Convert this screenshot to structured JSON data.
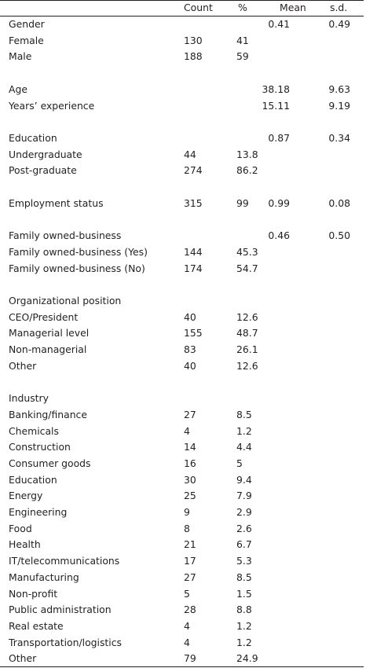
{
  "header": {
    "count": "Count",
    "pct": "%",
    "mean": "Mean",
    "sd": "s.d."
  },
  "rows": [
    {
      "label": "Gender",
      "count": "",
      "pct": "",
      "mean": "0.41",
      "sd": "0.49"
    },
    {
      "label": "Female",
      "count": "130",
      "pct": "41",
      "mean": "",
      "sd": ""
    },
    {
      "label": "Male",
      "count": "188",
      "pct": "59",
      "mean": "",
      "sd": ""
    },
    {
      "label": "",
      "count": "",
      "pct": "",
      "mean": "",
      "sd": ""
    },
    {
      "label": "Age",
      "count": "",
      "pct": "",
      "mean": "38.18",
      "sd": "9.63"
    },
    {
      "label": "Years’ experience",
      "count": "",
      "pct": "",
      "mean": "15.11",
      "sd": "9.19"
    },
    {
      "label": "",
      "count": "",
      "pct": "",
      "mean": "",
      "sd": ""
    },
    {
      "label": "Education",
      "count": "",
      "pct": "",
      "mean": "0.87",
      "sd": "0.34"
    },
    {
      "label": "Undergraduate",
      "count": "44",
      "pct": "13.8",
      "mean": "",
      "sd": ""
    },
    {
      "label": "Post-graduate",
      "count": "274",
      "pct": "86.2",
      "mean": "",
      "sd": ""
    },
    {
      "label": "",
      "count": "",
      "pct": "",
      "mean": "",
      "sd": ""
    },
    {
      "label": "Employment status",
      "count": "315",
      "pct": "99",
      "mean": "0.99",
      "sd": "0.08"
    },
    {
      "label": "",
      "count": "",
      "pct": "",
      "mean": "",
      "sd": ""
    },
    {
      "label": "Family owned-business",
      "count": "",
      "pct": "",
      "mean": "0.46",
      "sd": "0.50"
    },
    {
      "label": "Family owned-business (Yes)",
      "count": "144",
      "pct": "45.3",
      "mean": "",
      "sd": ""
    },
    {
      "label": "Family owned-business (No)",
      "count": "174",
      "pct": "54.7",
      "mean": "",
      "sd": ""
    },
    {
      "label": "",
      "count": "",
      "pct": "",
      "mean": "",
      "sd": ""
    },
    {
      "label": "Organizational position",
      "count": "",
      "pct": "",
      "mean": "",
      "sd": ""
    },
    {
      "label": "CEO/President",
      "count": "40",
      "pct": "12.6",
      "mean": "",
      "sd": ""
    },
    {
      "label": "Managerial level",
      "count": "155",
      "pct": "48.7",
      "mean": "",
      "sd": ""
    },
    {
      "label": "Non-managerial",
      "count": "83",
      "pct": "26.1",
      "mean": "",
      "sd": ""
    },
    {
      "label": "Other",
      "count": "40",
      "pct": "12.6",
      "mean": "",
      "sd": ""
    },
    {
      "label": "",
      "count": "",
      "pct": "",
      "mean": "",
      "sd": ""
    },
    {
      "label": "Industry",
      "count": "",
      "pct": "",
      "mean": "",
      "sd": ""
    },
    {
      "label": "Banking/finance",
      "count": "27",
      "pct": "8.5",
      "mean": "",
      "sd": ""
    },
    {
      "label": "Chemicals",
      "count": "4",
      "pct": "1.2",
      "mean": "",
      "sd": ""
    },
    {
      "label": "Construction",
      "count": "14",
      "pct": "4.4",
      "mean": "",
      "sd": ""
    },
    {
      "label": "Consumer goods",
      "count": "16",
      "pct": "5",
      "mean": "",
      "sd": ""
    },
    {
      "label": "Education",
      "count": "30",
      "pct": "9.4",
      "mean": "",
      "sd": ""
    },
    {
      "label": "Energy",
      "count": "25",
      "pct": "7.9",
      "mean": "",
      "sd": ""
    },
    {
      "label": "Engineering",
      "count": "9",
      "pct": "2.9",
      "mean": "",
      "sd": ""
    },
    {
      "label": "Food",
      "count": "8",
      "pct": "2.6",
      "mean": "",
      "sd": ""
    },
    {
      "label": "Health",
      "count": "21",
      "pct": "6.7",
      "mean": "",
      "sd": ""
    },
    {
      "label": "IT/telecommunications",
      "count": "17",
      "pct": "5.3",
      "mean": "",
      "sd": ""
    },
    {
      "label": "Manufacturing",
      "count": "27",
      "pct": "8.5",
      "mean": "",
      "sd": ""
    },
    {
      "label": "Non-profit",
      "count": "5",
      "pct": "1.5",
      "mean": "",
      "sd": ""
    },
    {
      "label": "Public administration",
      "count": "28",
      "pct": "8.8",
      "mean": "",
      "sd": ""
    },
    {
      "label": "Real estate",
      "count": "4",
      "pct": "1.2",
      "mean": "",
      "sd": ""
    },
    {
      "label": "Transportation/logistics",
      "count": "4",
      "pct": "1.2",
      "mean": "",
      "sd": ""
    },
    {
      "label": "Other",
      "count": "79",
      "pct": "24.9",
      "mean": "",
      "sd": ""
    }
  ]
}
